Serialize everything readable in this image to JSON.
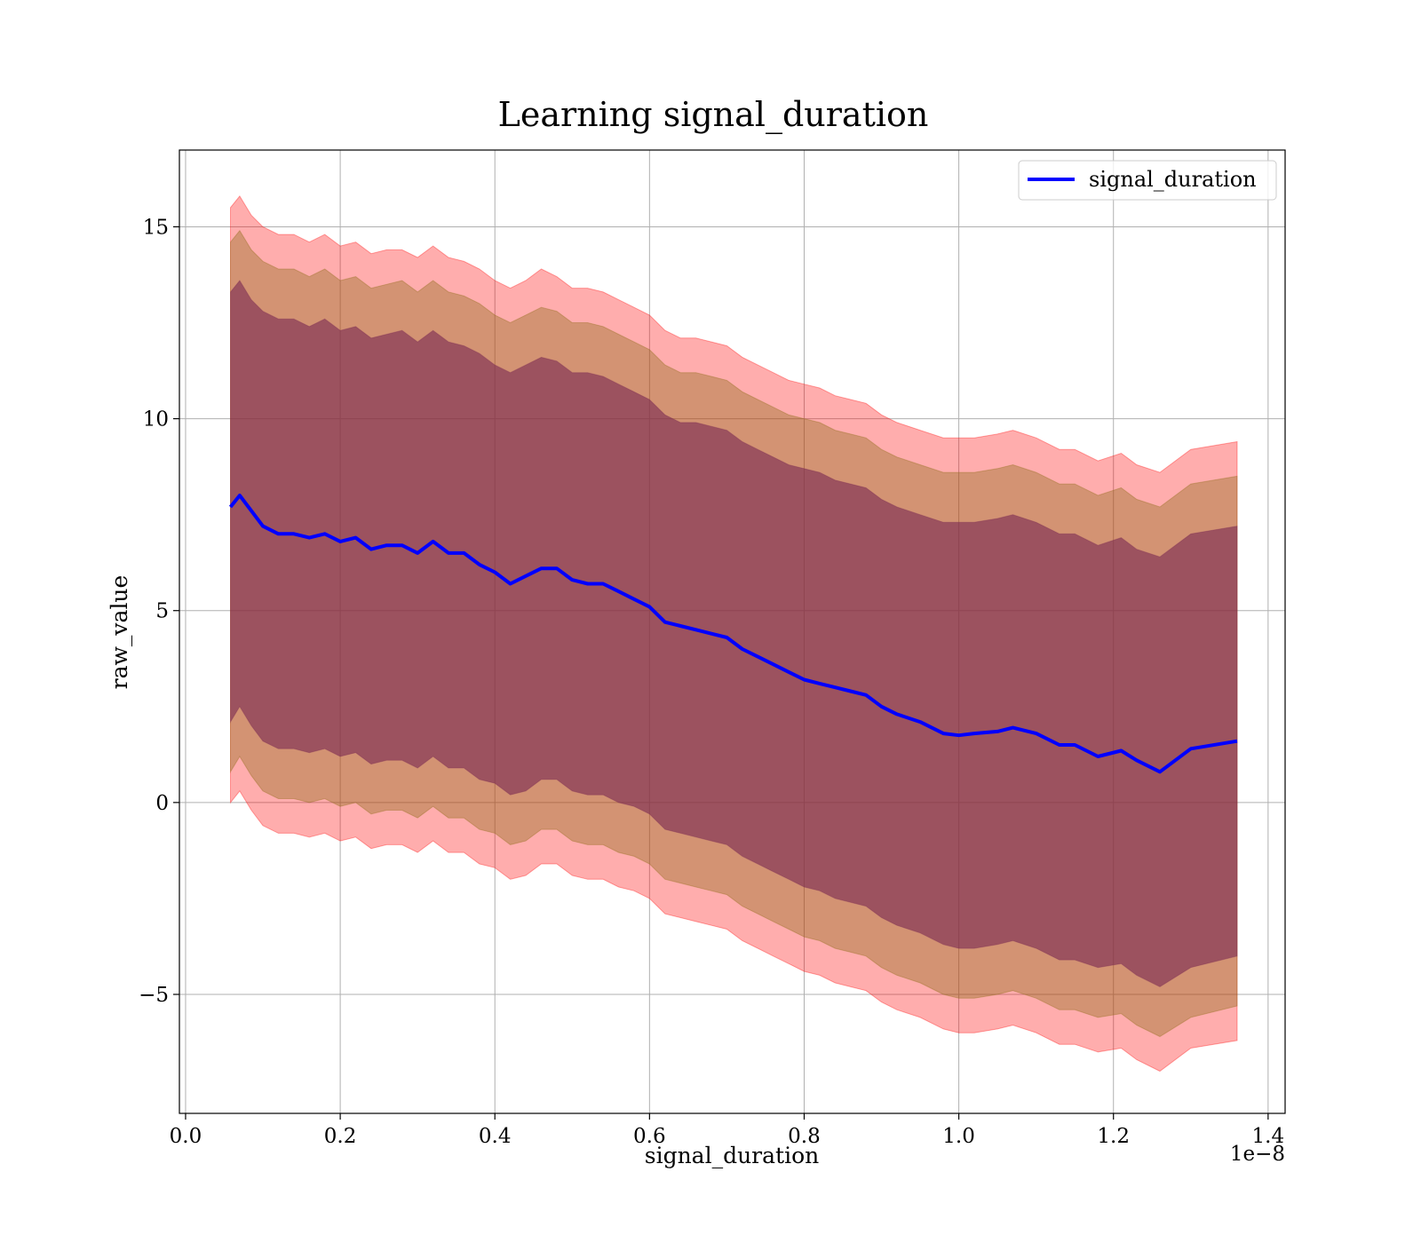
{
  "chart_data": {
    "type": "line",
    "title": "Learning signal_duration",
    "xlabel": "signal_duration",
    "ylabel": "raw_value",
    "x_offset_text": "1e−8",
    "xlim": [
      -0.008,
      1.422
    ],
    "ylim": [
      -8.1,
      17.0
    ],
    "x_ticks": [
      0.0,
      0.2,
      0.4,
      0.6,
      0.8,
      1.0,
      1.2,
      1.4
    ],
    "x_tick_labels": [
      "0.0",
      "0.2",
      "0.4",
      "0.6",
      "0.8",
      "1.0",
      "1.2",
      "1.4"
    ],
    "y_ticks": [
      -5,
      0,
      5,
      10,
      15
    ],
    "y_tick_labels": [
      "−5",
      "0",
      "5",
      "10",
      "15"
    ],
    "grid": true,
    "legend": {
      "position": "upper-right",
      "entries": [
        "signal_duration"
      ]
    },
    "colors": {
      "mean_line": "#0000ff",
      "band_3sigma": "#ff0000",
      "band_2sigma": "#8b6914",
      "band_1sigma": "#7a2a52"
    },
    "series": [
      {
        "name": "signal_duration",
        "role": "mean",
        "x": [
          0.058,
          0.07,
          0.085,
          0.1,
          0.12,
          0.14,
          0.16,
          0.18,
          0.2,
          0.22,
          0.24,
          0.26,
          0.28,
          0.3,
          0.32,
          0.34,
          0.36,
          0.38,
          0.4,
          0.42,
          0.44,
          0.46,
          0.48,
          0.5,
          0.52,
          0.54,
          0.56,
          0.58,
          0.6,
          0.62,
          0.64,
          0.66,
          0.68,
          0.7,
          0.72,
          0.74,
          0.76,
          0.78,
          0.8,
          0.82,
          0.84,
          0.86,
          0.88,
          0.9,
          0.92,
          0.95,
          0.98,
          1.0,
          1.02,
          1.05,
          1.07,
          1.1,
          1.13,
          1.15,
          1.18,
          1.21,
          1.23,
          1.26,
          1.3,
          1.36
        ],
        "y": [
          7.7,
          8.0,
          7.6,
          7.2,
          7.0,
          7.0,
          6.9,
          7.0,
          6.8,
          6.9,
          6.6,
          6.7,
          6.7,
          6.5,
          6.8,
          6.5,
          6.5,
          6.2,
          6.0,
          5.7,
          5.9,
          6.1,
          6.1,
          5.8,
          5.7,
          5.7,
          5.5,
          5.3,
          5.1,
          4.7,
          4.6,
          4.5,
          4.4,
          4.3,
          4.0,
          3.8,
          3.6,
          3.4,
          3.2,
          3.1,
          3.0,
          2.9,
          2.8,
          2.5,
          2.3,
          2.1,
          1.8,
          1.75,
          1.8,
          1.85,
          1.95,
          1.8,
          1.5,
          1.5,
          1.2,
          1.35,
          1.1,
          0.8,
          1.4,
          1.6
        ]
      },
      {
        "name": "",
        "role": "band-1sigma",
        "x": [
          0.058,
          0.07,
          0.085,
          0.1,
          0.12,
          0.14,
          0.16,
          0.18,
          0.2,
          0.22,
          0.24,
          0.26,
          0.28,
          0.3,
          0.32,
          0.34,
          0.36,
          0.38,
          0.4,
          0.42,
          0.44,
          0.46,
          0.48,
          0.5,
          0.52,
          0.54,
          0.56,
          0.58,
          0.6,
          0.62,
          0.64,
          0.66,
          0.68,
          0.7,
          0.72,
          0.74,
          0.76,
          0.78,
          0.8,
          0.82,
          0.84,
          0.86,
          0.88,
          0.9,
          0.92,
          0.95,
          0.98,
          1.0,
          1.02,
          1.05,
          1.07,
          1.1,
          1.13,
          1.15,
          1.18,
          1.21,
          1.23,
          1.26,
          1.3,
          1.36
        ],
        "upper": [
          13.3,
          13.6,
          13.1,
          12.8,
          12.6,
          12.6,
          12.4,
          12.6,
          12.3,
          12.4,
          12.1,
          12.2,
          12.3,
          12.0,
          12.3,
          12.0,
          11.9,
          11.7,
          11.4,
          11.2,
          11.4,
          11.6,
          11.5,
          11.2,
          11.2,
          11.1,
          10.9,
          10.7,
          10.5,
          10.1,
          9.9,
          9.9,
          9.8,
          9.7,
          9.4,
          9.2,
          9.0,
          8.8,
          8.7,
          8.6,
          8.4,
          8.3,
          8.2,
          7.9,
          7.7,
          7.5,
          7.3,
          7.3,
          7.3,
          7.4,
          7.5,
          7.3,
          7.0,
          7.0,
          6.7,
          6.9,
          6.6,
          6.4,
          7.0,
          7.2
        ],
        "lower": [
          2.1,
          2.5,
          2.0,
          1.6,
          1.4,
          1.4,
          1.3,
          1.4,
          1.2,
          1.3,
          1.0,
          1.1,
          1.1,
          0.9,
          1.2,
          0.9,
          0.9,
          0.6,
          0.5,
          0.2,
          0.3,
          0.6,
          0.6,
          0.3,
          0.2,
          0.2,
          0.0,
          -0.1,
          -0.3,
          -0.7,
          -0.8,
          -0.9,
          -1.0,
          -1.1,
          -1.4,
          -1.6,
          -1.8,
          -2.0,
          -2.2,
          -2.3,
          -2.5,
          -2.6,
          -2.7,
          -3.0,
          -3.2,
          -3.4,
          -3.7,
          -3.8,
          -3.8,
          -3.7,
          -3.6,
          -3.8,
          -4.1,
          -4.1,
          -4.3,
          -4.2,
          -4.5,
          -4.8,
          -4.3,
          -4.0
        ]
      },
      {
        "name": "",
        "role": "band-2sigma",
        "x": [
          0.058,
          0.07,
          0.085,
          0.1,
          0.12,
          0.14,
          0.16,
          0.18,
          0.2,
          0.22,
          0.24,
          0.26,
          0.28,
          0.3,
          0.32,
          0.34,
          0.36,
          0.38,
          0.4,
          0.42,
          0.44,
          0.46,
          0.48,
          0.5,
          0.52,
          0.54,
          0.56,
          0.58,
          0.6,
          0.62,
          0.64,
          0.66,
          0.68,
          0.7,
          0.72,
          0.74,
          0.76,
          0.78,
          0.8,
          0.82,
          0.84,
          0.86,
          0.88,
          0.9,
          0.92,
          0.95,
          0.98,
          1.0,
          1.02,
          1.05,
          1.07,
          1.1,
          1.13,
          1.15,
          1.18,
          1.21,
          1.23,
          1.26,
          1.3,
          1.36
        ],
        "upper": [
          14.6,
          14.9,
          14.4,
          14.1,
          13.9,
          13.9,
          13.7,
          13.9,
          13.6,
          13.7,
          13.4,
          13.5,
          13.6,
          13.3,
          13.6,
          13.3,
          13.2,
          13.0,
          12.7,
          12.5,
          12.7,
          12.9,
          12.8,
          12.5,
          12.5,
          12.4,
          12.2,
          12.0,
          11.8,
          11.4,
          11.2,
          11.2,
          11.1,
          11.0,
          10.7,
          10.5,
          10.3,
          10.1,
          10.0,
          9.9,
          9.7,
          9.6,
          9.5,
          9.2,
          9.0,
          8.8,
          8.6,
          8.6,
          8.6,
          8.7,
          8.8,
          8.6,
          8.3,
          8.3,
          8.0,
          8.2,
          7.9,
          7.7,
          8.3,
          8.5
        ],
        "lower": [
          0.8,
          1.2,
          0.7,
          0.3,
          0.1,
          0.1,
          0.0,
          0.1,
          -0.1,
          0.0,
          -0.3,
          -0.2,
          -0.2,
          -0.4,
          -0.1,
          -0.4,
          -0.4,
          -0.7,
          -0.8,
          -1.1,
          -1.0,
          -0.7,
          -0.7,
          -1.0,
          -1.1,
          -1.1,
          -1.3,
          -1.4,
          -1.6,
          -2.0,
          -2.1,
          -2.2,
          -2.3,
          -2.4,
          -2.7,
          -2.9,
          -3.1,
          -3.3,
          -3.5,
          -3.6,
          -3.8,
          -3.9,
          -4.0,
          -4.3,
          -4.5,
          -4.7,
          -5.0,
          -5.1,
          -5.1,
          -5.0,
          -4.9,
          -5.1,
          -5.4,
          -5.4,
          -5.6,
          -5.5,
          -5.8,
          -6.1,
          -5.6,
          -5.3
        ]
      },
      {
        "name": "",
        "role": "band-3sigma",
        "x": [
          0.058,
          0.07,
          0.085,
          0.1,
          0.12,
          0.14,
          0.16,
          0.18,
          0.2,
          0.22,
          0.24,
          0.26,
          0.28,
          0.3,
          0.32,
          0.34,
          0.36,
          0.38,
          0.4,
          0.42,
          0.44,
          0.46,
          0.48,
          0.5,
          0.52,
          0.54,
          0.56,
          0.58,
          0.6,
          0.62,
          0.64,
          0.66,
          0.68,
          0.7,
          0.72,
          0.74,
          0.76,
          0.78,
          0.8,
          0.82,
          0.84,
          0.86,
          0.88,
          0.9,
          0.92,
          0.95,
          0.98,
          1.0,
          1.02,
          1.05,
          1.07,
          1.1,
          1.13,
          1.15,
          1.18,
          1.21,
          1.23,
          1.26,
          1.3,
          1.36
        ],
        "upper": [
          15.5,
          15.8,
          15.3,
          15.0,
          14.8,
          14.8,
          14.6,
          14.8,
          14.5,
          14.6,
          14.3,
          14.4,
          14.4,
          14.2,
          14.5,
          14.2,
          14.1,
          13.9,
          13.6,
          13.4,
          13.6,
          13.9,
          13.7,
          13.4,
          13.4,
          13.3,
          13.1,
          12.9,
          12.7,
          12.3,
          12.1,
          12.1,
          12.0,
          11.9,
          11.6,
          11.4,
          11.2,
          11.0,
          10.9,
          10.8,
          10.6,
          10.5,
          10.4,
          10.1,
          9.9,
          9.7,
          9.5,
          9.5,
          9.5,
          9.6,
          9.7,
          9.5,
          9.2,
          9.2,
          8.9,
          9.1,
          8.8,
          8.6,
          9.2,
          9.4
        ],
        "lower": [
          0.0,
          0.3,
          -0.2,
          -0.6,
          -0.8,
          -0.8,
          -0.9,
          -0.8,
          -1.0,
          -0.9,
          -1.2,
          -1.1,
          -1.1,
          -1.3,
          -1.0,
          -1.3,
          -1.3,
          -1.6,
          -1.7,
          -2.0,
          -1.9,
          -1.6,
          -1.6,
          -1.9,
          -2.0,
          -2.0,
          -2.2,
          -2.3,
          -2.5,
          -2.9,
          -3.0,
          -3.1,
          -3.2,
          -3.3,
          -3.6,
          -3.8,
          -4.0,
          -4.2,
          -4.4,
          -4.5,
          -4.7,
          -4.8,
          -4.9,
          -5.2,
          -5.4,
          -5.6,
          -5.9,
          -6.0,
          -6.0,
          -5.9,
          -5.8,
          -6.0,
          -6.3,
          -6.3,
          -6.5,
          -6.4,
          -6.7,
          -7.0,
          -6.4,
          -6.2
        ]
      }
    ]
  }
}
